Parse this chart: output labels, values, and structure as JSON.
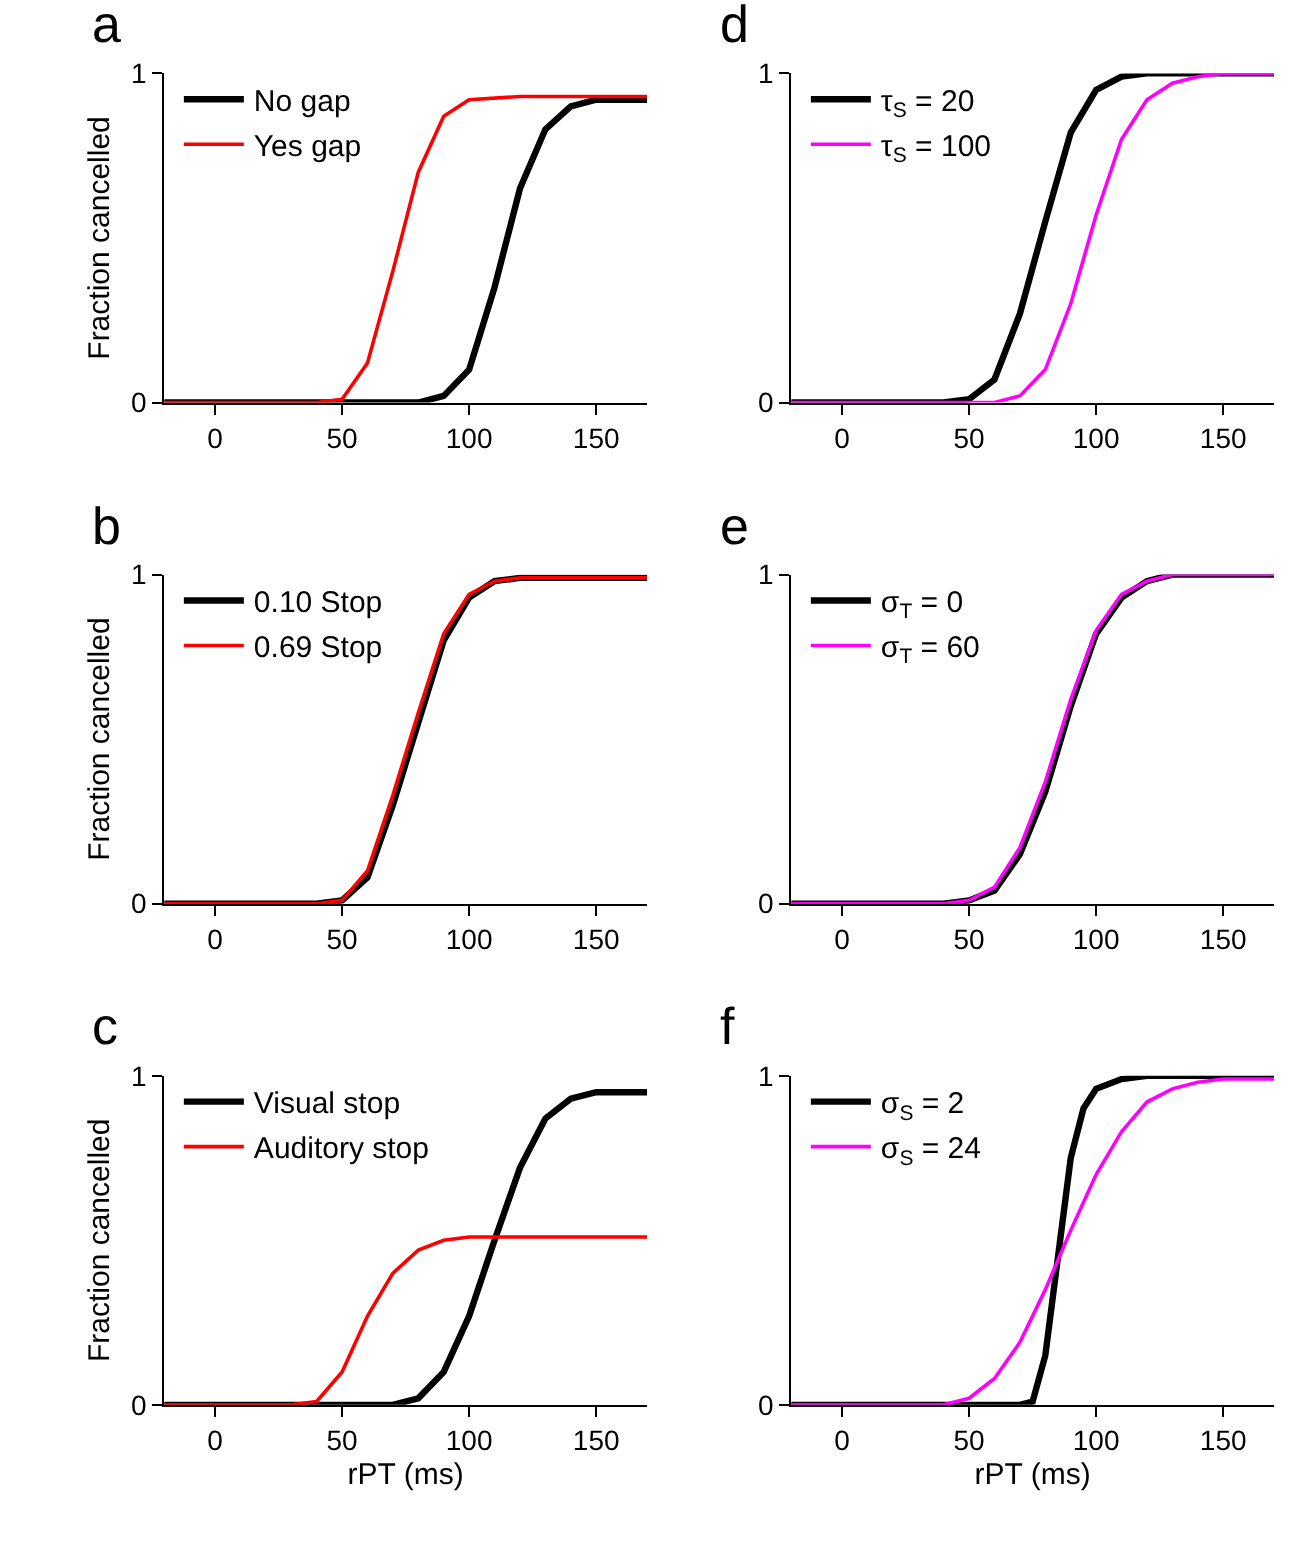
{
  "chart_data": [
    {
      "type": "line",
      "title": "a",
      "ylabel": "Fraction cancelled",
      "xlim": [
        -20,
        170
      ],
      "xticks": [
        0,
        50,
        100,
        150
      ],
      "ylim": [
        0,
        1
      ],
      "yticks": [
        0,
        1
      ],
      "legend": "top left",
      "series": [
        {
          "name": "No gap",
          "color": "#000000",
          "x": [
            -20,
            0,
            50,
            80,
            90,
            100,
            110,
            115,
            120,
            130,
            140,
            150,
            170
          ],
          "values": [
            0,
            0,
            0,
            0,
            0.02,
            0.1,
            0.35,
            0.5,
            0.65,
            0.83,
            0.9,
            0.92,
            0.92
          ]
        },
        {
          "name": "Yes gap",
          "color": "#ff0000",
          "x": [
            -20,
            0,
            40,
            50,
            60,
            70,
            80,
            90,
            100,
            120,
            170
          ],
          "values": [
            0,
            0,
            0,
            0.01,
            0.12,
            0.4,
            0.7,
            0.87,
            0.92,
            0.93,
            0.93
          ]
        }
      ]
    },
    {
      "type": "line",
      "title": "b",
      "ylabel": "Fraction cancelled",
      "xlim": [
        -20,
        170
      ],
      "xticks": [
        0,
        50,
        100,
        150
      ],
      "ylim": [
        0,
        1
      ],
      "yticks": [
        0,
        1
      ],
      "legend": "top left",
      "series": [
        {
          "name": "0.10 Stop",
          "color": "#000000",
          "x": [
            -20,
            0,
            40,
            50,
            60,
            70,
            80,
            90,
            100,
            110,
            120,
            170
          ],
          "values": [
            0,
            0,
            0,
            0.01,
            0.08,
            0.3,
            0.55,
            0.8,
            0.93,
            0.98,
            0.99,
            0.99
          ]
        },
        {
          "name": "0.69 Stop",
          "color": "#ff0000",
          "x": [
            -20,
            0,
            40,
            50,
            60,
            70,
            80,
            90,
            100,
            110,
            120,
            170
          ],
          "values": [
            0,
            0,
            0,
            0.01,
            0.1,
            0.33,
            0.58,
            0.82,
            0.94,
            0.98,
            0.99,
            0.99
          ]
        }
      ]
    },
    {
      "type": "line",
      "title": "c",
      "ylabel": "Fraction cancelled",
      "xlabel": "rPT (ms)",
      "xlim": [
        -20,
        170
      ],
      "xticks": [
        0,
        50,
        100,
        150
      ],
      "ylim": [
        0,
        1
      ],
      "yticks": [
        0,
        1
      ],
      "legend": "top left",
      "series": [
        {
          "name": "Visual stop",
          "color": "#000000",
          "x": [
            -20,
            0,
            50,
            70,
            80,
            90,
            100,
            110,
            120,
            130,
            140,
            150,
            170
          ],
          "values": [
            0,
            0,
            0,
            0,
            0.02,
            0.1,
            0.27,
            0.5,
            0.72,
            0.87,
            0.93,
            0.95,
            0.95
          ]
        },
        {
          "name": "Auditory stop",
          "color": "#ff0000",
          "x": [
            -20,
            0,
            30,
            40,
            50,
            60,
            70,
            80,
            90,
            100,
            170
          ],
          "values": [
            0,
            0,
            0,
            0.01,
            0.1,
            0.27,
            0.4,
            0.47,
            0.5,
            0.51,
            0.51
          ]
        }
      ]
    },
    {
      "type": "line",
      "title": "d",
      "xlim": [
        -20,
        170
      ],
      "xticks": [
        0,
        50,
        100,
        150
      ],
      "ylim": [
        0,
        1
      ],
      "yticks": [
        0,
        1
      ],
      "legend": "top left",
      "series": [
        {
          "name": "τ$_{S}$ = 20",
          "color": "#000000",
          "x": [
            -20,
            0,
            40,
            50,
            60,
            70,
            80,
            90,
            100,
            110,
            120,
            170
          ],
          "values": [
            0,
            0,
            0,
            0.01,
            0.07,
            0.27,
            0.55,
            0.82,
            0.95,
            0.99,
            1,
            1
          ]
        },
        {
          "name": "τ$_{S}$ = 100",
          "color": "#ff00ff",
          "x": [
            -20,
            0,
            50,
            60,
            70,
            80,
            90,
            100,
            110,
            120,
            130,
            140,
            150,
            170
          ],
          "values": [
            0,
            0,
            0,
            0,
            0.02,
            0.1,
            0.3,
            0.57,
            0.8,
            0.92,
            0.97,
            0.99,
            1,
            1
          ]
        }
      ]
    },
    {
      "type": "line",
      "title": "e",
      "xlim": [
        -20,
        170
      ],
      "xticks": [
        0,
        50,
        100,
        150
      ],
      "ylim": [
        0,
        1
      ],
      "yticks": [
        0,
        1
      ],
      "legend": "top left",
      "series": [
        {
          "name": "σ$_{T}$ = 0",
          "color": "#000000",
          "x": [
            -20,
            0,
            40,
            50,
            60,
            70,
            80,
            90,
            100,
            110,
            120,
            130,
            170
          ],
          "values": [
            0,
            0,
            0,
            0.01,
            0.04,
            0.15,
            0.34,
            0.6,
            0.82,
            0.93,
            0.98,
            1,
            1
          ]
        },
        {
          "name": "σ$_{T}$ = 60",
          "color": "#ff00ff",
          "x": [
            -20,
            0,
            40,
            50,
            60,
            70,
            80,
            90,
            100,
            110,
            120,
            130,
            170
          ],
          "values": [
            0,
            0,
            0,
            0.01,
            0.05,
            0.17,
            0.37,
            0.62,
            0.83,
            0.94,
            0.98,
            1,
            1
          ]
        }
      ]
    },
    {
      "type": "line",
      "title": "f",
      "xlabel": "rPT (ms)",
      "xlim": [
        -20,
        170
      ],
      "xticks": [
        0,
        50,
        100,
        150
      ],
      "ylim": [
        0,
        1
      ],
      "yticks": [
        0,
        1
      ],
      "legend": "top left",
      "series": [
        {
          "name": "σ$_{S}$ = 2",
          "color": "#000000",
          "x": [
            -20,
            0,
            70,
            75,
            80,
            85,
            90,
            95,
            100,
            110,
            120,
            170
          ],
          "values": [
            0,
            0,
            0,
            0.01,
            0.15,
            0.45,
            0.75,
            0.9,
            0.96,
            0.99,
            1,
            1
          ]
        },
        {
          "name": "σ$_{S}$ = 24",
          "color": "#ff00ff",
          "x": [
            -20,
            0,
            40,
            50,
            60,
            70,
            80,
            90,
            100,
            110,
            120,
            130,
            140,
            150,
            170
          ],
          "values": [
            0,
            0,
            0,
            0.02,
            0.08,
            0.19,
            0.35,
            0.53,
            0.7,
            0.83,
            0.92,
            0.96,
            0.98,
            0.99,
            0.99
          ]
        }
      ]
    }
  ]
}
